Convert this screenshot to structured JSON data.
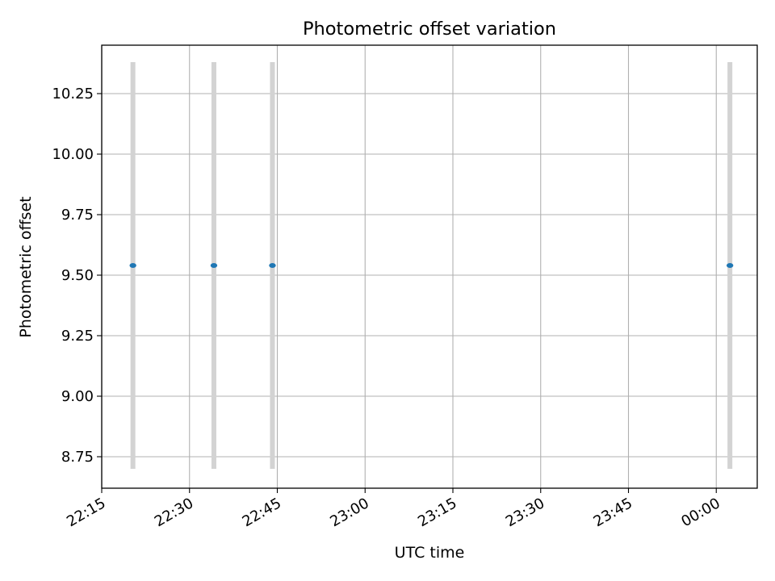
{
  "chart_data": {
    "type": "scatter",
    "title": "Photometric offset variation",
    "xlabel": "UTC time",
    "ylabel": "Photometric offset",
    "x_axis_type": "time",
    "xlim": [
      "22:15",
      "00:07"
    ],
    "ylim": [
      8.62,
      10.45
    ],
    "grid": true,
    "x_ticks": [
      "22:15",
      "22:30",
      "22:45",
      "23:00",
      "23:15",
      "23:30",
      "23:45",
      "00:00"
    ],
    "y_ticks": [
      "8.75",
      "9.00",
      "9.25",
      "9.50",
      "9.75",
      "10.00",
      "10.25"
    ],
    "series": [
      {
        "x": [
          "22:20:20",
          "22:34:10",
          "22:44:10",
          "00:02:20"
        ],
        "y": [
          9.54,
          9.54,
          9.54,
          9.54
        ],
        "error_low": [
          8.7,
          8.7,
          8.7,
          8.7
        ],
        "error_high": [
          10.38,
          10.38,
          10.38,
          10.38
        ]
      }
    ],
    "colors": {
      "marker": "#1f77b4",
      "errorbar": "#d3d3d3",
      "grid": "#b0b0b0"
    }
  }
}
